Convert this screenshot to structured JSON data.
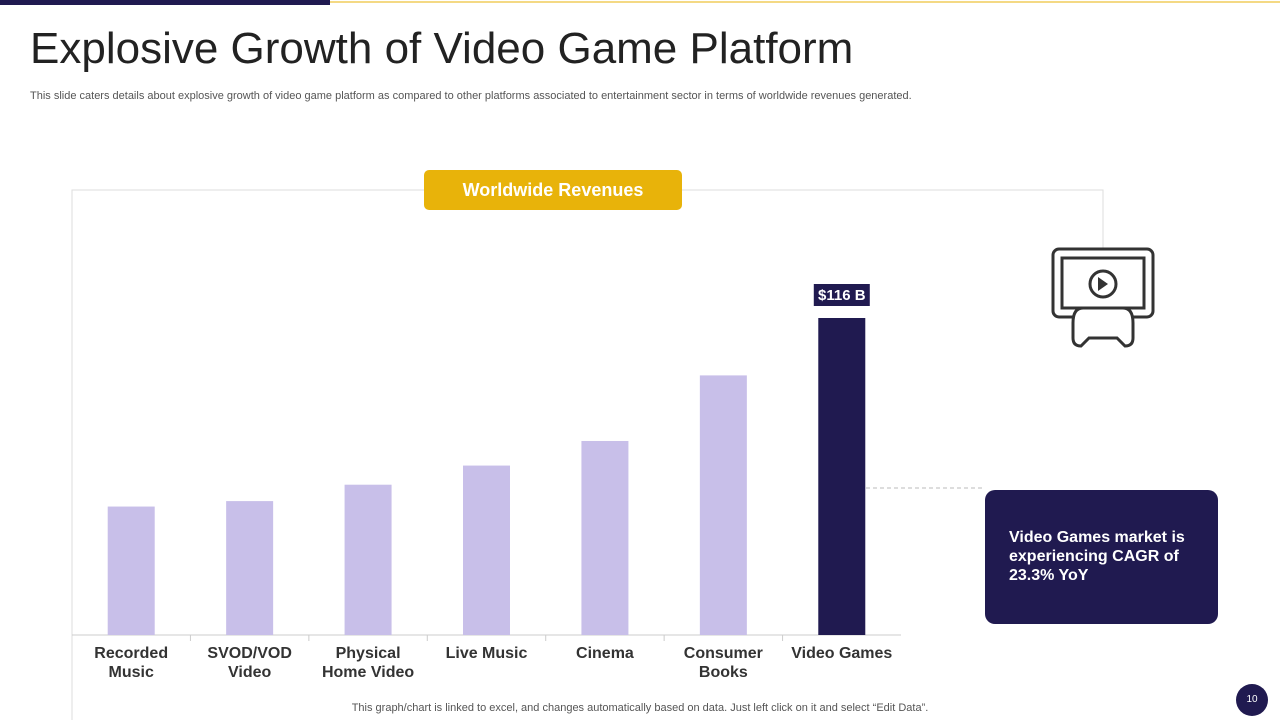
{
  "chart_data": {
    "type": "bar",
    "title": "Explosive Growth of Video Game Platform",
    "subtitle": "This slide caters details about explosive growth of video game platform as compared to other platforms associated to entertainment sector in terms of worldwide revenues generated.",
    "chart_title": "Worldwide Revenues",
    "categories": [
      "Recorded Music",
      "SVOD/VOD Video",
      "Physical Home Video",
      "Live Music",
      "Cinema",
      "Consumer Books",
      "Video Games"
    ],
    "values": [
      47,
      49,
      55,
      62,
      71,
      95,
      116
    ],
    "value_labels": [
      null,
      null,
      null,
      null,
      null,
      null,
      "$116 B"
    ],
    "colors": [
      "#c8bfe9",
      "#c8bfe9",
      "#c8bfe9",
      "#c8bfe9",
      "#c8bfe9",
      "#c8bfe9",
      "#201a50"
    ],
    "annotation": "Video Games market is experiencing CAGR of 23.3% YoY",
    "footnote": "This graph/chart is linked to excel,  and changes automatically based on data. Just left click on it and select “Edit Data”.",
    "page_number": "10"
  }
}
